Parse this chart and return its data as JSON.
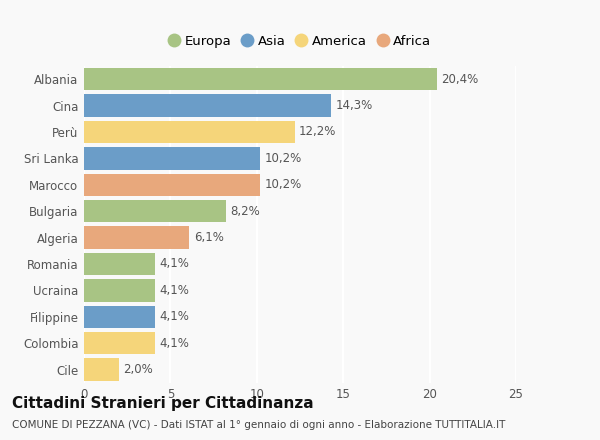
{
  "categories": [
    "Albania",
    "Cina",
    "Perù",
    "Sri Lanka",
    "Marocco",
    "Bulgaria",
    "Algeria",
    "Romania",
    "Ucraina",
    "Filippine",
    "Colombia",
    "Cile"
  ],
  "values": [
    20.4,
    14.3,
    12.2,
    10.2,
    10.2,
    8.2,
    6.1,
    4.1,
    4.1,
    4.1,
    4.1,
    2.0
  ],
  "labels": [
    "20,4%",
    "14,3%",
    "12,2%",
    "10,2%",
    "10,2%",
    "8,2%",
    "6,1%",
    "4,1%",
    "4,1%",
    "4,1%",
    "4,1%",
    "2,0%"
  ],
  "continent": [
    "Europa",
    "Asia",
    "America",
    "Asia",
    "Africa",
    "Europa",
    "Africa",
    "Europa",
    "Europa",
    "Asia",
    "America",
    "America"
  ],
  "colors": {
    "Europa": "#a8c484",
    "Asia": "#6b9dc8",
    "America": "#f5d57a",
    "Africa": "#e8a87c"
  },
  "legend_order": [
    "Europa",
    "Asia",
    "America",
    "Africa"
  ],
  "xlim": [
    0,
    25
  ],
  "xticks": [
    0,
    5,
    10,
    15,
    20,
    25
  ],
  "title": "Cittadini Stranieri per Cittadinanza",
  "subtitle": "COMUNE DI PEZZANA (VC) - Dati ISTAT al 1° gennaio di ogni anno - Elaborazione TUTTITALIA.IT",
  "background_color": "#f9f9f9",
  "bar_height": 0.85,
  "label_fontsize": 8.5,
  "tick_fontsize": 8.5,
  "title_fontsize": 11,
  "subtitle_fontsize": 7.5
}
